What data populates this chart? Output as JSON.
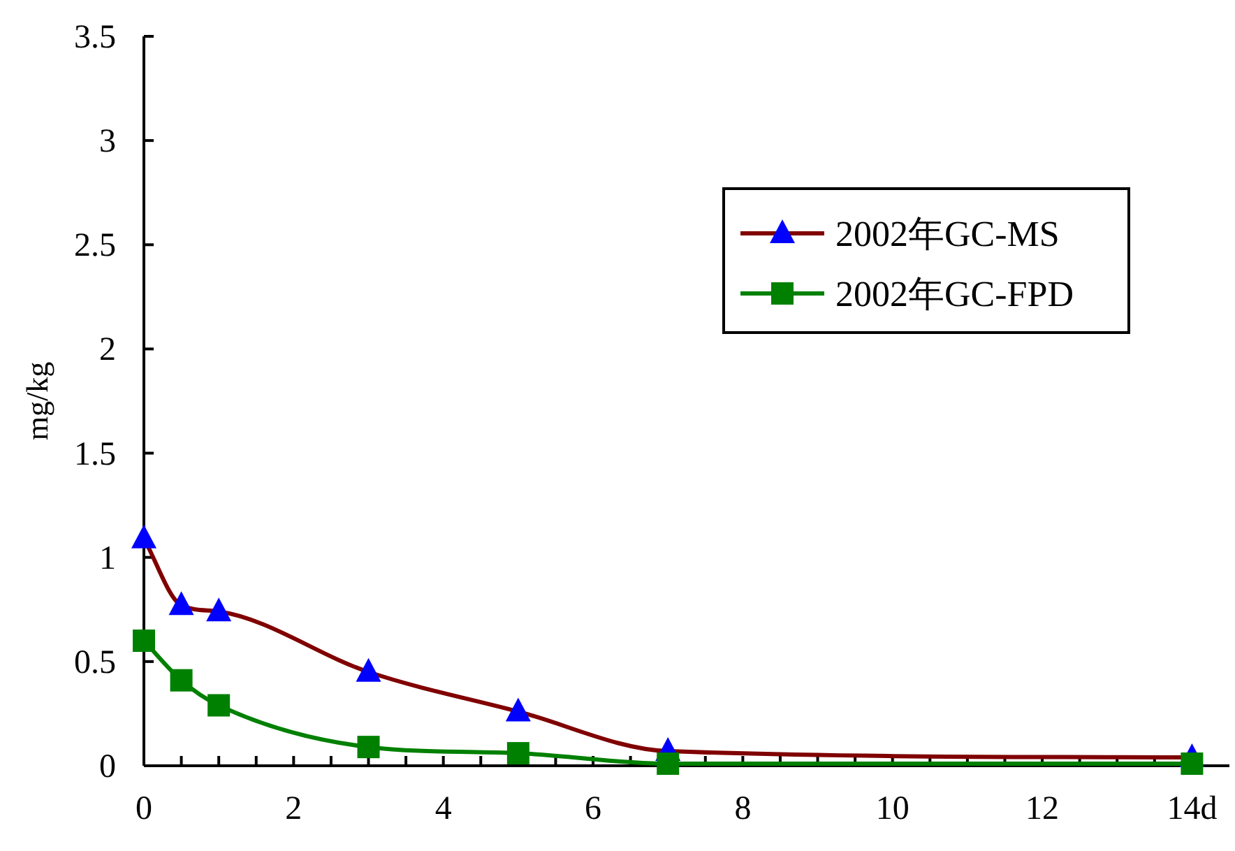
{
  "chart_data": {
    "type": "line",
    "ylabel": "mg/kg",
    "x": [
      0,
      0.5,
      1,
      3,
      5,
      7,
      14
    ],
    "series": [
      {
        "name": "2002年GC-MS",
        "color": "#800000",
        "marker": "triangle",
        "colors": [
          "#0000ff",
          "#0000ff",
          "#0000ff",
          "#0000ff",
          "#0000ff",
          "#0000ff",
          "#0000ff"
        ],
        "values": [
          1.09,
          0.77,
          0.74,
          0.45,
          0.26,
          0.07,
          0.04
        ]
      },
      {
        "name": "2002年GC-FPD",
        "color": "#008000",
        "marker": "square",
        "colors": [
          "#008000",
          "#008000",
          "#008000",
          "#008000",
          "#008000",
          "#008000",
          "#008000"
        ],
        "values": [
          0.6,
          0.41,
          0.29,
          0.09,
          0.06,
          0.01,
          0.01
        ]
      }
    ],
    "xlim": [
      0,
      14.5
    ],
    "xticks": [
      0,
      {
        "value": 0.5,
        "label": null
      },
      {
        "value": 1,
        "label": null
      },
      {
        "value": 1.5,
        "label": null
      },
      2,
      {
        "value": 2.5,
        "label": null
      },
      {
        "value": 3,
        "label": null
      },
      {
        "value": 3.5,
        "label": null
      },
      4,
      {
        "value": 4.5,
        "label": null
      },
      {
        "value": 5,
        "label": null
      },
      {
        "value": 5.5,
        "label": null
      },
      6,
      {
        "value": 6.5,
        "label": null
      },
      {
        "value": 7,
        "label": null
      },
      {
        "value": 7.5,
        "label": null
      },
      8,
      {
        "value": 8.5,
        "label": null
      },
      {
        "value": 9,
        "label": null
      },
      {
        "value": 9.5,
        "label": null
      },
      10,
      {
        "value": 10.5,
        "label": null
      },
      {
        "value": 11,
        "label": null
      },
      {
        "value": 11.5,
        "label": null
      },
      12,
      {
        "value": 12.5,
        "label": null
      },
      {
        "value": 13,
        "label": null
      },
      {
        "value": 13.5,
        "label": null
      },
      {
        "value": 14,
        "label": "14d"
      }
    ],
    "ylim": [
      0,
      3.5
    ],
    "yticks": [
      0,
      0.5,
      1,
      1.5,
      2,
      2.5,
      3,
      3.5
    ],
    "grid": false,
    "legend": "top right",
    "line_style": "solid"
  }
}
